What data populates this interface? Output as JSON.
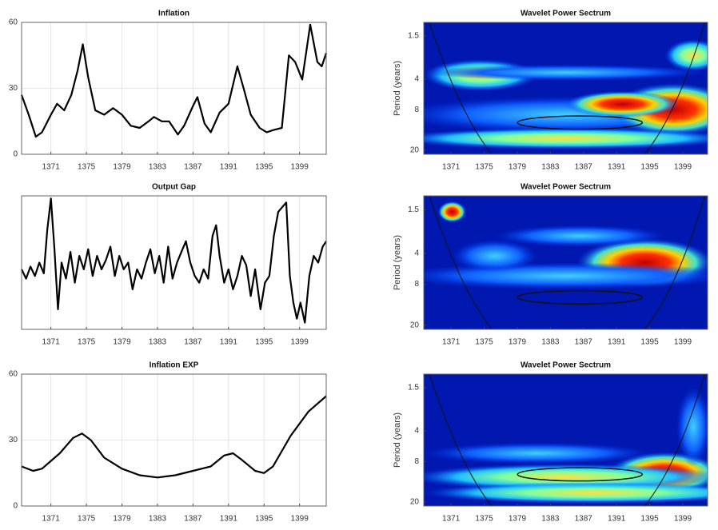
{
  "chart_data": [
    {
      "type": "line",
      "title": "Inflation",
      "color": "#000000",
      "grid": true,
      "x": [
        1367.7,
        1368.5,
        1369.3,
        1370,
        1371,
        1371.7,
        1372.5,
        1373.3,
        1374,
        1374.6,
        1375.2,
        1376,
        1377,
        1378,
        1379,
        1380,
        1381,
        1382,
        1382.6,
        1383.5,
        1384.3,
        1385.3,
        1386,
        1387,
        1387.5,
        1388.3,
        1389,
        1390,
        1391,
        1392,
        1392.7,
        1393.5,
        1394.5,
        1395.3,
        1396,
        1397,
        1397.8,
        1398.5,
        1399.3,
        1400.2,
        1401,
        1401.5,
        1402
      ],
      "values": [
        27,
        18,
        8,
        10,
        18,
        23,
        20,
        27,
        38,
        50,
        35,
        20,
        18,
        21,
        18,
        13,
        12,
        15,
        17,
        15,
        15,
        9,
        13,
        22,
        26,
        14,
        10,
        19,
        23,
        40,
        30,
        18,
        12,
        10,
        11,
        12,
        45,
        42,
        34,
        59,
        42,
        40,
        46
      ],
      "xlim": [
        1367.7,
        1402
      ],
      "xticks": [
        1371,
        1375,
        1379,
        1383,
        1387,
        1391,
        1395,
        1399
      ],
      "ylim": [
        0,
        60
      ],
      "yticks": [
        0,
        30,
        60
      ]
    },
    {
      "type": "line",
      "title": "Output Gap",
      "color": "#000000",
      "grid": true,
      "x": [
        1367.7,
        1368.2,
        1368.7,
        1369.2,
        1369.7,
        1370.2,
        1370.6,
        1371,
        1371.4,
        1371.8,
        1372.2,
        1372.7,
        1373.2,
        1373.7,
        1374.2,
        1374.7,
        1375.2,
        1375.7,
        1376.2,
        1376.7,
        1377.2,
        1377.7,
        1378.2,
        1378.7,
        1379.2,
        1379.7,
        1380.2,
        1380.7,
        1381.2,
        1381.7,
        1382.2,
        1382.7,
        1383.2,
        1383.7,
        1384.2,
        1384.7,
        1385.2,
        1385.7,
        1386.2,
        1386.7,
        1387.2,
        1387.7,
        1388.2,
        1388.7,
        1389.2,
        1389.6,
        1390,
        1390.5,
        1391,
        1391.5,
        1392,
        1392.5,
        1393,
        1393.5,
        1394,
        1394.6,
        1395.1,
        1395.6,
        1396.1,
        1396.6,
        1397.1,
        1397.5,
        1397.9,
        1398.3,
        1398.7,
        1399.1,
        1399.6,
        1400.1,
        1400.6,
        1401.1,
        1401.6,
        1402
      ],
      "values": [
        45,
        38,
        47,
        40,
        50,
        42,
        75,
        98,
        60,
        15,
        50,
        38,
        58,
        35,
        55,
        45,
        60,
        40,
        55,
        45,
        52,
        62,
        40,
        55,
        45,
        50,
        30,
        45,
        38,
        50,
        60,
        42,
        55,
        35,
        62,
        38,
        50,
        58,
        66,
        50,
        40,
        35,
        45,
        38,
        70,
        78,
        55,
        35,
        45,
        30,
        40,
        55,
        48,
        25,
        45,
        15,
        35,
        40,
        70,
        88,
        92,
        95,
        40,
        20,
        8,
        20,
        5,
        40,
        55,
        50,
        62,
        66
      ],
      "xlim": [
        1367.7,
        1402
      ],
      "xticks": [
        1371,
        1375,
        1379,
        1383,
        1387,
        1391,
        1395,
        1399
      ],
      "ylim": [
        0,
        100
      ]
    },
    {
      "type": "line",
      "title": "Inflation EXP",
      "color": "#000000",
      "grid": true,
      "x": [
        1367.7,
        1369,
        1370,
        1372,
        1373.5,
        1374.5,
        1375.5,
        1377,
        1379,
        1381,
        1383,
        1385,
        1387,
        1389,
        1390.5,
        1391.5,
        1392.5,
        1394,
        1395,
        1396,
        1398,
        1400,
        1402
      ],
      "values": [
        18,
        16,
        17,
        24,
        31,
        33,
        30,
        22,
        17,
        14,
        13,
        14,
        16,
        18,
        23,
        24,
        21,
        16,
        15,
        18,
        32,
        43,
        50
      ],
      "xlim": [
        1367.7,
        1402
      ],
      "xticks": [
        1371,
        1375,
        1379,
        1383,
        1387,
        1391,
        1395,
        1399
      ],
      "ylim": [
        0,
        60
      ],
      "yticks": [
        0,
        30,
        60
      ]
    },
    {
      "type": "heatmap",
      "title": "Wavelet Power Sectrum",
      "y_label": "Period (years)",
      "xlim": [
        1367.7,
        1402
      ],
      "xticks": [
        1371,
        1375,
        1379,
        1383,
        1387,
        1391,
        1395,
        1399
      ],
      "ylim": [
        1.1,
        22
      ],
      "yticks": [
        1.5,
        4,
        8,
        20
      ],
      "yscale": "log"
    },
    {
      "type": "heatmap",
      "title": "Wavelet Power Sectrum",
      "y_label": "Period (years)",
      "xlim": [
        1367.7,
        1402
      ],
      "xticks": [
        1371,
        1375,
        1379,
        1383,
        1387,
        1391,
        1395,
        1399
      ],
      "ylim": [
        1.1,
        22
      ],
      "yticks": [
        1.5,
        4,
        8,
        20
      ],
      "yscale": "log"
    },
    {
      "type": "heatmap",
      "title": "Wavelet Power Sectrum",
      "y_label": "Period (years)",
      "xlim": [
        1367.7,
        1402
      ],
      "xticks": [
        1371,
        1375,
        1379,
        1383,
        1387,
        1391,
        1395,
        1399
      ],
      "ylim": [
        1.1,
        22
      ],
      "yticks": [
        1.5,
        4,
        8,
        20
      ],
      "yscale": "log"
    }
  ]
}
